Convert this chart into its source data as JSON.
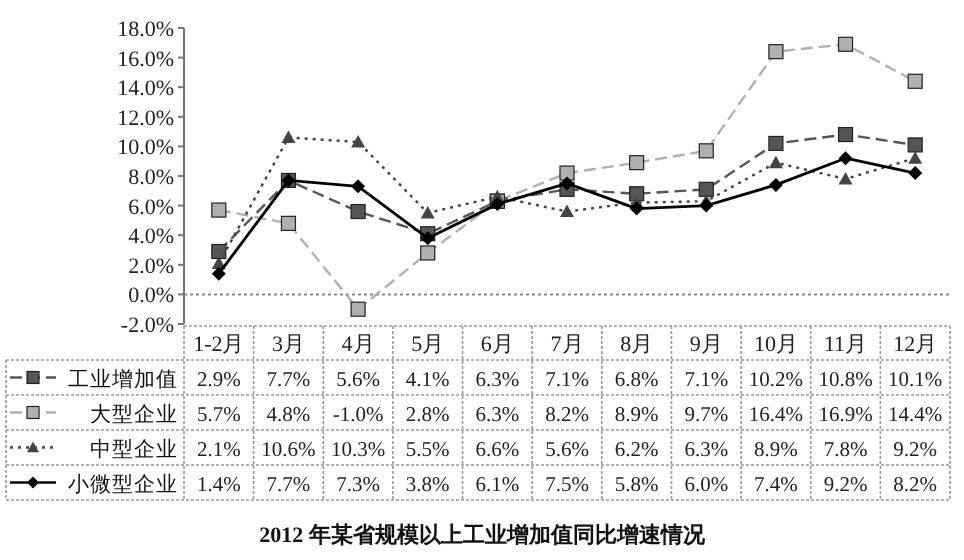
{
  "chart_data": {
    "type": "line",
    "title": "2012 年某省规模以上工业增加值同比增速情况",
    "categories": [
      "1-2月",
      "3月",
      "4月",
      "5月",
      "6月",
      "7月",
      "8月",
      "9月",
      "10月",
      "11月",
      "12月"
    ],
    "ylim": [
      -2,
      18
    ],
    "yticks": [
      {
        "value": -2,
        "label": "-2.0%"
      },
      {
        "value": 0,
        "label": "0.0%"
      },
      {
        "value": 2,
        "label": "2.0%"
      },
      {
        "value": 4,
        "label": "4.0%"
      },
      {
        "value": 6,
        "label": "6.0%"
      },
      {
        "value": 8,
        "label": "8.0%"
      },
      {
        "value": 10,
        "label": "10.0%"
      },
      {
        "value": 12,
        "label": "12.0%"
      },
      {
        "value": 14,
        "label": "14.0%"
      },
      {
        "value": 16,
        "label": "16.0%"
      },
      {
        "value": 18,
        "label": "18.0%"
      }
    ],
    "legend": "bottom",
    "series": [
      {
        "name": "工业增加值",
        "color": "#555555",
        "marker": "square",
        "line_style": "dashed",
        "values": [
          2.9,
          7.7,
          5.6,
          4.1,
          6.3,
          7.1,
          6.8,
          7.1,
          10.2,
          10.8,
          10.1
        ],
        "value_labels": [
          "2.9%",
          "7.7%",
          "5.6%",
          "4.1%",
          "6.3%",
          "7.1%",
          "6.8%",
          "7.1%",
          "10.2%",
          "10.8%",
          "10.1%"
        ]
      },
      {
        "name": "大型企业",
        "color": "#b0b0b0",
        "marker": "square",
        "line_style": "dashed",
        "values": [
          5.7,
          4.8,
          -1.0,
          2.8,
          6.3,
          8.2,
          8.9,
          9.7,
          16.4,
          16.9,
          14.4
        ],
        "value_labels": [
          "5.7%",
          "4.8%",
          "-1.0%",
          "2.8%",
          "6.3%",
          "8.2%",
          "8.9%",
          "9.7%",
          "16.4%",
          "16.9%",
          "14.4%"
        ]
      },
      {
        "name": "中型企业",
        "color": "#444444",
        "marker": "triangle",
        "line_style": "dotted",
        "values": [
          2.1,
          10.6,
          10.3,
          5.5,
          6.6,
          5.6,
          6.2,
          6.3,
          8.9,
          7.8,
          9.2
        ],
        "value_labels": [
          "2.1%",
          "10.6%",
          "10.3%",
          "5.5%",
          "6.6%",
          "5.6%",
          "6.2%",
          "6.3%",
          "8.9%",
          "7.8%",
          "9.2%"
        ]
      },
      {
        "name": "小微型企业",
        "color": "#000000",
        "marker": "diamond",
        "line_style": "solid",
        "values": [
          1.4,
          7.7,
          7.3,
          3.8,
          6.1,
          7.5,
          5.8,
          6.0,
          7.4,
          9.2,
          8.2
        ],
        "value_labels": [
          "1.4%",
          "7.7%",
          "7.3%",
          "3.8%",
          "6.1%",
          "7.5%",
          "5.8%",
          "6.0%",
          "7.4%",
          "9.2%",
          "8.2%"
        ]
      }
    ]
  }
}
